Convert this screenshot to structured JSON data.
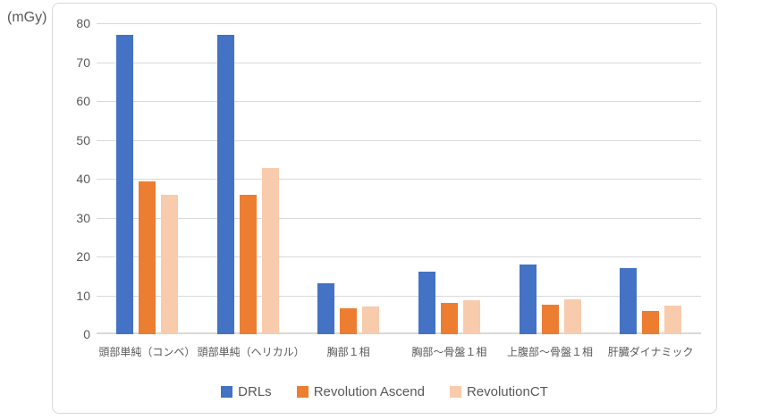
{
  "chart_data": {
    "type": "bar",
    "title": "",
    "y_axis_unit": "(mGy)",
    "xlabel": "",
    "ylabel": "",
    "ylim": [
      0,
      80
    ],
    "yticks": [
      0,
      10,
      20,
      30,
      40,
      50,
      60,
      70,
      80
    ],
    "grid": true,
    "legend_position": "bottom",
    "categories": [
      "頭部単純（コンベ）",
      "頭部単純（ヘリカル）",
      "胸部１相",
      "胸部～骨盤１相",
      "上腹部～骨盤１相",
      "肝臓ダイナミック"
    ],
    "series": [
      {
        "name": "DRLs",
        "color": "#4472C4",
        "values": [
          77,
          77,
          13,
          16,
          18,
          17
        ]
      },
      {
        "name": "Revolution Ascend",
        "color": "#ED7D31",
        "values": [
          39.3,
          35.8,
          6.6,
          8.0,
          7.5,
          5.9
        ]
      },
      {
        "name": "RevolutionCT",
        "color": "#F8CBAD",
        "values": [
          35.9,
          42.7,
          7.2,
          8.8,
          9.0,
          7.3
        ]
      }
    ],
    "style_colors": {
      "gridline": "#d9d9d9",
      "axis_line": "#d9d9d9",
      "tick_text": "#595959",
      "legend_text": "#595959",
      "chart_border": "#d9d9d9",
      "background": "#ffffff"
    }
  }
}
